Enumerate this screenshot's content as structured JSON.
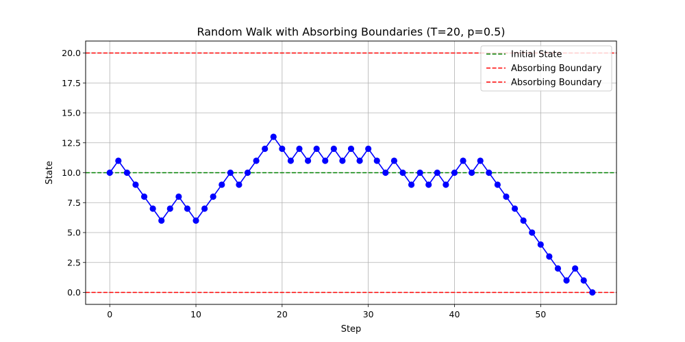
{
  "chart_data": {
    "type": "line",
    "title": "Random Walk with Absorbing Boundaries (T=20, p=0.5)",
    "xlabel": "Step",
    "ylabel": "State",
    "xlim": [
      -2.8,
      58.8
    ],
    "ylim": [
      -1.0,
      21.0
    ],
    "xticks": [
      0,
      10,
      20,
      30,
      40,
      50
    ],
    "xtick_labels": [
      "0",
      "10",
      "20",
      "30",
      "40",
      "50"
    ],
    "yticks": [
      0,
      2.5,
      5,
      7.5,
      10,
      12.5,
      15,
      17.5,
      20
    ],
    "ytick_labels": [
      "0.0",
      "2.5",
      "5.0",
      "7.5",
      "10.0",
      "12.5",
      "15.0",
      "17.5",
      "20.0"
    ],
    "grid": true,
    "legend_position": "upper right",
    "series": [
      {
        "kind": "walk",
        "color": "#0000ff",
        "marker": "circle",
        "x": [
          0,
          1,
          2,
          3,
          4,
          5,
          6,
          7,
          8,
          9,
          10,
          11,
          12,
          13,
          14,
          15,
          16,
          17,
          18,
          19,
          20,
          21,
          22,
          23,
          24,
          25,
          26,
          27,
          28,
          29,
          30,
          31,
          32,
          33,
          34,
          35,
          36,
          37,
          38,
          39,
          40,
          41,
          42,
          43,
          44,
          45,
          46,
          47,
          48,
          49,
          50,
          51,
          52,
          53,
          54,
          55,
          56
        ],
        "y": [
          10,
          11,
          10,
          9,
          8,
          7,
          6,
          7,
          8,
          7,
          6,
          7,
          8,
          9,
          10,
          9,
          10,
          11,
          12,
          13,
          12,
          11,
          12,
          11,
          12,
          11,
          12,
          11,
          12,
          11,
          12,
          11,
          10,
          11,
          10,
          9,
          10,
          9,
          10,
          9,
          10,
          11,
          10,
          11,
          10,
          9,
          8,
          7,
          6,
          5,
          4,
          3,
          2,
          1,
          2,
          1,
          0
        ]
      },
      {
        "kind": "hline",
        "name": "Initial State",
        "y": 10,
        "color": "#008000",
        "linestyle": "dashed"
      },
      {
        "kind": "hline",
        "name": "Absorbing Boundary",
        "y": 0,
        "color": "#ff0000",
        "linestyle": "dashed"
      },
      {
        "kind": "hline",
        "name": "Absorbing Boundary",
        "y": 20,
        "color": "#ff0000",
        "linestyle": "dashed"
      }
    ]
  }
}
